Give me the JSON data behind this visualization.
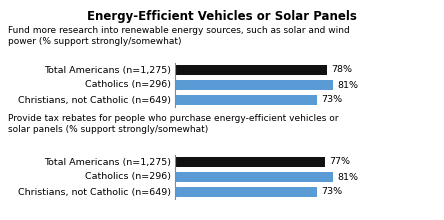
{
  "title_line1": "Energy-Efficient Vehicles or Solar Panels",
  "section1_label": "Fund more research into renewable energy sources, such as solar and wind\npower (% support strongly/somewhat)",
  "section2_label": "Provide tax rebates for people who purchase energy-efficient vehicles or\nsolar panels (% support strongly/somewhat)",
  "categories": [
    "Total Americans (n=1,275)",
    "Catholics (n=296)",
    "Christians, not Catholic (n=649)"
  ],
  "section1_values": [
    78,
    81,
    73
  ],
  "section2_values": [
    77,
    81,
    73
  ],
  "bar_colors": [
    "#111111",
    "#5b9bd5",
    "#5b9bd5"
  ],
  "value_labels_s1": [
    "78%",
    "81%",
    "73%"
  ],
  "value_labels_s2": [
    "77%",
    "81%",
    "73%"
  ],
  "bg_color": "#ffffff",
  "fontsize_labels": 6.8,
  "fontsize_values": 6.8,
  "fontsize_section": 6.5,
  "fontsize_title": 8.5
}
